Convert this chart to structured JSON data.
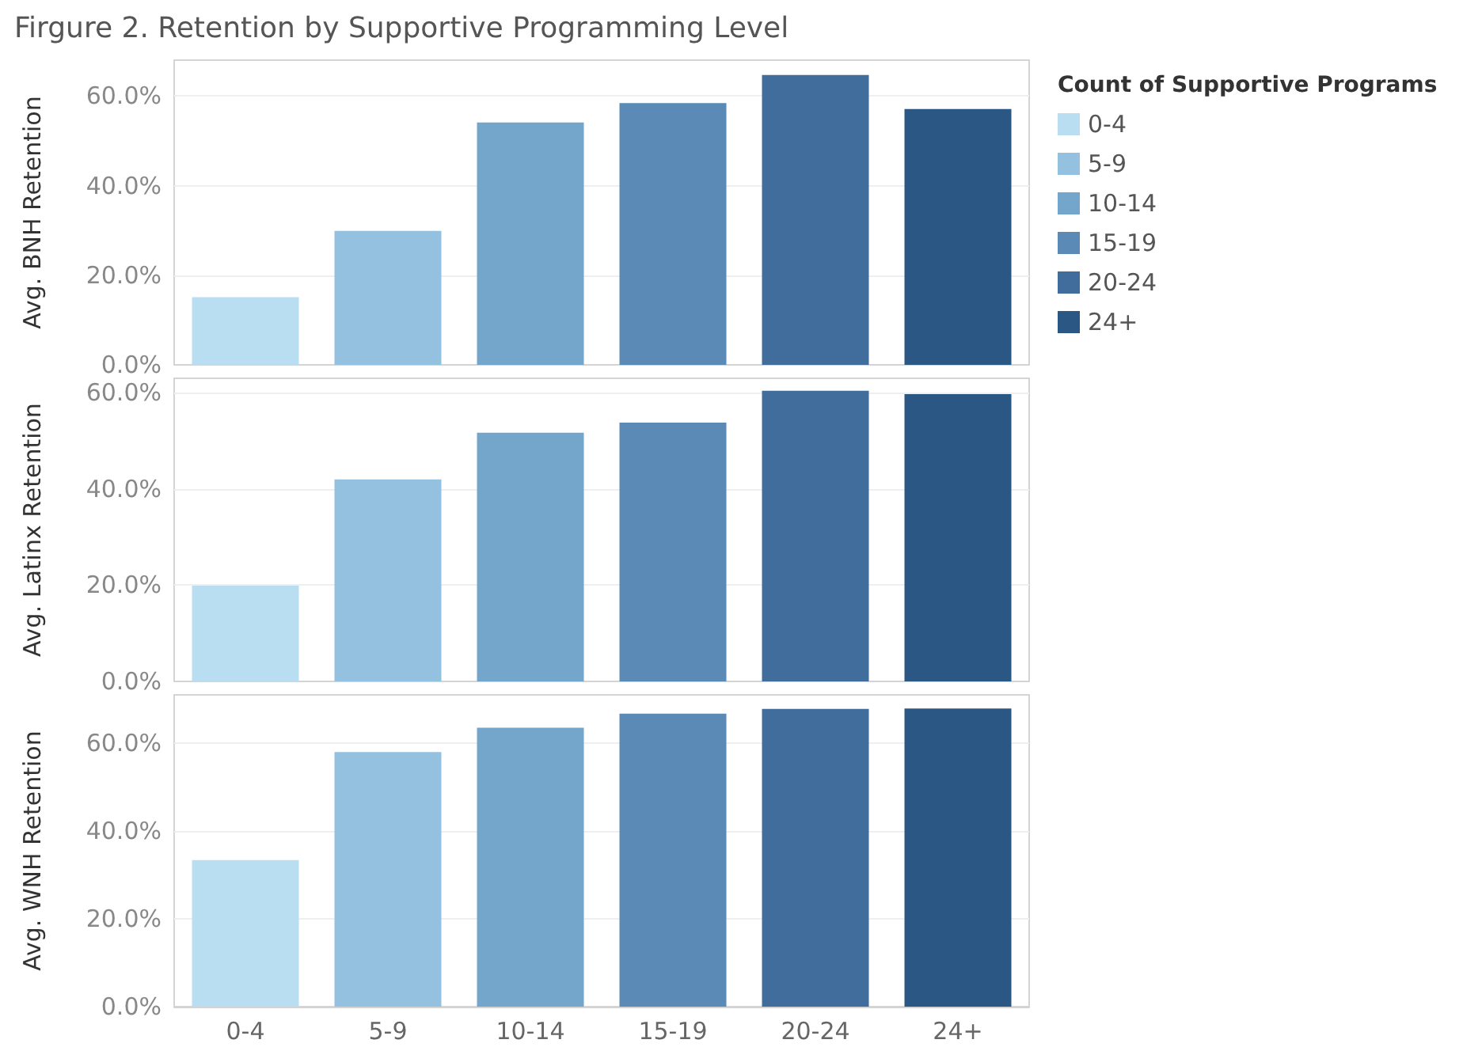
{
  "chart_data": [
    {
      "type": "bar",
      "title": "Firgure 2. Retention by Supportive Programming Level",
      "ylabel": "Avg. BNH Retention",
      "legend_title": "Count of Supportive Programs",
      "legend": "right",
      "stacked": true,
      "categories": [
        null,
        null,
        null,
        null,
        null,
        null
      ],
      "series": [
        {
          "name": "0-4",
          "color": "#b9ddf1",
          "values": [
            15.1,
            null,
            null,
            null,
            null,
            null
          ]
        },
        {
          "name": "5-9",
          "color": "#95c1e0",
          "values": [
            null,
            29.9,
            null,
            null,
            null,
            null
          ]
        },
        {
          "name": "10-14",
          "color": "#74a6cb",
          "values": [
            null,
            null,
            54.1,
            null,
            null,
            null
          ]
        },
        {
          "name": "15-19",
          "color": "#5a8ab5",
          "values": [
            null,
            null,
            null,
            58.4,
            null,
            null
          ]
        },
        {
          "name": "20-24",
          "color": "#416d9d",
          "values": [
            null,
            null,
            null,
            null,
            64.7,
            null
          ]
        },
        {
          "name": "24+",
          "color": "#2a5783",
          "values": [
            null,
            null,
            null,
            null,
            null,
            57.1
          ]
        }
      ],
      "ylim": [
        0,
        68
      ],
      "yticks": [
        {
          "value": 0,
          "label": "0.0%"
        },
        {
          "value": 20,
          "label": "20.0%"
        },
        {
          "value": 40,
          "label": "40.0%"
        },
        {
          "value": 60,
          "label": "60.0%"
        }
      ],
      "grid": "y",
      "tick_labels": "y"
    },
    {
      "type": "bar",
      "ylabel": "Avg. Latinx Retention",
      "stacked": true,
      "categories": [
        null,
        null,
        null,
        null,
        null,
        null
      ],
      "series": [
        {
          "color": "#b9ddf1",
          "values": [
            19.9,
            null,
            null,
            null,
            null,
            null
          ]
        },
        {
          "color": "#95c1e0",
          "values": [
            null,
            42.0,
            null,
            null,
            null,
            null
          ]
        },
        {
          "color": "#74a6cb",
          "values": [
            null,
            null,
            51.7,
            null,
            null,
            null
          ]
        },
        {
          "color": "#5a8ab5",
          "values": [
            null,
            null,
            null,
            53.8,
            null,
            null
          ]
        },
        {
          "color": "#416d9d",
          "values": [
            null,
            null,
            null,
            null,
            60.4,
            null
          ]
        },
        {
          "color": "#2a5783",
          "values": [
            null,
            null,
            null,
            null,
            null,
            59.7
          ]
        }
      ],
      "ylim": [
        0,
        63
      ],
      "yticks": [
        {
          "value": 0,
          "label": "0.0%"
        },
        {
          "value": 20,
          "label": "20.0%"
        },
        {
          "value": 40,
          "label": "40.0%"
        },
        {
          "value": 60,
          "label": "60.0%"
        }
      ],
      "grid": "y",
      "tick_labels": "y"
    },
    {
      "type": "bar",
      "ylabel": "Avg. WNH Retention",
      "stacked": true,
      "categories": [
        "0-4",
        "5-9",
        "10-14",
        "15-19",
        "20-24",
        "24+"
      ],
      "series": [
        {
          "color": "#b9ddf1",
          "values": [
            33.4,
            null,
            null,
            null,
            null,
            null
          ]
        },
        {
          "color": "#95c1e0",
          "values": [
            null,
            58.0,
            null,
            null,
            null,
            null
          ]
        },
        {
          "color": "#74a6cb",
          "values": [
            null,
            null,
            63.5,
            null,
            null,
            null
          ]
        },
        {
          "color": "#5a8ab5",
          "values": [
            null,
            null,
            null,
            66.7,
            null,
            null
          ]
        },
        {
          "color": "#416d9d",
          "values": [
            null,
            null,
            null,
            null,
            67.8,
            null
          ]
        },
        {
          "color": "#2a5783",
          "values": [
            null,
            null,
            null,
            null,
            null,
            67.9
          ]
        }
      ],
      "ylim": [
        0,
        71
      ],
      "yticks": [
        {
          "value": 0,
          "label": "0.0%"
        },
        {
          "value": 20,
          "label": "20.0%"
        },
        {
          "value": 40,
          "label": "40.0%"
        },
        {
          "value": 60,
          "label": "60.0%"
        }
      ],
      "grid": "y"
    }
  ]
}
